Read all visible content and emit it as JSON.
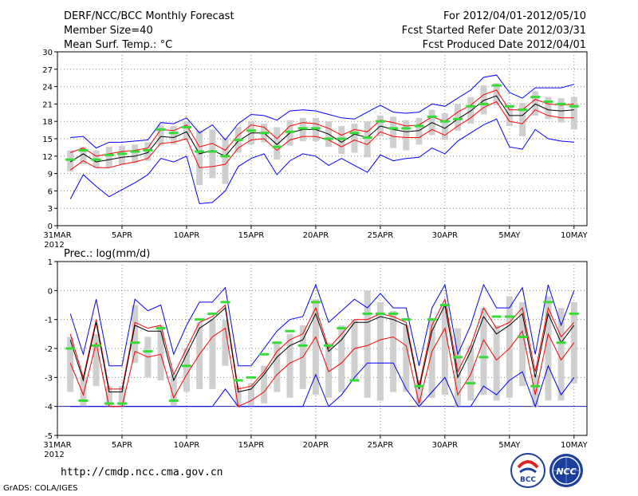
{
  "header": {
    "title": "DERF/NCC/BCC Monthly Forecast",
    "member_size": "Member Size=40",
    "variable": "Mean Surf. Temp.: °C",
    "period": "For 2012/04/01-2012/05/10",
    "started": "Fcst Started Refer Date 2012/03/31",
    "produced": "Fcst Produced Date 2012/04/01"
  },
  "footer": {
    "url": "http://cmdp.ncc.cma.gov.cn",
    "credit": "GrADS: COLA/IGES",
    "logo_bcc": "BCC",
    "logo_ncc": "NCC"
  },
  "colors": {
    "box": "#cfcfcf",
    "max_min": "#0000ff",
    "quartile": "#ff0000",
    "median": "#000000",
    "observation": "#33dd33",
    "grid": "#888888"
  },
  "chart_data": [
    {
      "type": "box",
      "title": "Mean Surf. Temp.: °C",
      "x_tick_labels": [
        "31MAR",
        "5APR",
        "10APR",
        "15APR",
        "20APR",
        "25APR",
        "30APR",
        "5MAY",
        "10MAY"
      ],
      "x_tick_days": [
        0,
        5,
        10,
        15,
        20,
        25,
        30,
        35,
        40
      ],
      "x_year_label": "2012",
      "ylim": [
        0,
        30
      ],
      "y_ticks": [
        0,
        3,
        6,
        9,
        12,
        15,
        18,
        21,
        24,
        27,
        30
      ],
      "days": [
        1,
        2,
        3,
        4,
        5,
        6,
        7,
        8,
        9,
        10,
        11,
        12,
        13,
        14,
        15,
        16,
        17,
        18,
        19,
        20,
        21,
        22,
        23,
        24,
        25,
        26,
        27,
        28,
        29,
        30,
        31,
        32,
        33,
        34,
        35,
        36,
        37,
        38,
        39,
        40
      ],
      "series": [
        {
          "name": "max",
          "values": [
            15.2,
            15.4,
            13.4,
            14.4,
            14.4,
            14.6,
            14.8,
            17.8,
            17.6,
            18.6,
            16.0,
            17.4,
            14.8,
            17.6,
            19.2,
            19.0,
            18.2,
            19.8,
            20.0,
            19.8,
            19.2,
            18.6,
            18.4,
            19.6,
            20.8,
            19.6,
            19.4,
            19.6,
            21.0,
            20.6,
            22.0,
            23.4,
            25.6,
            26.0,
            23.0,
            22.0,
            23.8,
            23.8,
            23.8,
            24.4
          ]
        },
        {
          "name": "q3",
          "values": [
            12.6,
            13.4,
            12.0,
            12.4,
            12.8,
            13.0,
            13.4,
            16.6,
            16.4,
            17.4,
            13.6,
            14.2,
            13.0,
            15.6,
            17.4,
            17.0,
            15.0,
            17.2,
            17.8,
            17.6,
            16.8,
            15.6,
            16.6,
            16.2,
            18.2,
            17.8,
            17.2,
            17.4,
            18.8,
            18.0,
            19.6,
            20.8,
            22.6,
            23.4,
            20.0,
            20.0,
            21.8,
            21.0,
            20.8,
            21.0
          ]
        },
        {
          "name": "median",
          "values": [
            11.0,
            12.4,
            11.0,
            11.4,
            11.8,
            12.0,
            12.6,
            15.4,
            15.2,
            16.2,
            12.4,
            13.0,
            12.0,
            14.6,
            16.0,
            16.0,
            14.0,
            16.0,
            16.6,
            16.6,
            15.8,
            14.4,
            15.8,
            15.2,
            17.2,
            16.6,
            16.2,
            16.4,
            17.8,
            16.8,
            18.4,
            19.8,
            21.6,
            22.4,
            19.0,
            19.0,
            21.0,
            20.0,
            19.8,
            20.0
          ]
        },
        {
          "name": "q1",
          "values": [
            9.6,
            11.2,
            10.0,
            10.0,
            10.6,
            11.0,
            11.6,
            14.2,
            14.4,
            15.0,
            10.0,
            10.2,
            10.6,
            13.4,
            14.8,
            15.0,
            13.0,
            14.8,
            15.4,
            15.4,
            14.8,
            13.6,
            14.8,
            14.0,
            16.2,
            15.4,
            15.2,
            15.2,
            16.6,
            15.6,
            17.2,
            18.6,
            20.4,
            21.4,
            18.0,
            17.6,
            20.0,
            19.0,
            18.6,
            18.6
          ]
        },
        {
          "name": "min",
          "values": [
            4.6,
            8.8,
            6.8,
            5.0,
            6.2,
            7.4,
            8.8,
            11.6,
            11.0,
            12.0,
            3.8,
            4.0,
            6.0,
            10.2,
            11.6,
            12.4,
            8.8,
            11.2,
            12.4,
            12.0,
            10.4,
            11.6,
            10.4,
            9.2,
            12.2,
            11.2,
            11.6,
            11.8,
            13.4,
            12.4,
            14.6,
            16.0,
            17.4,
            18.4,
            13.6,
            13.2,
            16.6,
            15.0,
            14.6,
            14.4
          ]
        },
        {
          "name": "observed",
          "values": [
            11.4,
            13.0,
            11.4,
            12.2,
            12.4,
            12.8,
            13.0,
            16.6,
            16.0,
            17.0,
            12.8,
            12.8,
            12.0,
            14.8,
            16.4,
            16.0,
            13.6,
            16.2,
            16.8,
            16.8,
            15.0,
            15.0,
            16.0,
            15.2,
            18.0,
            16.8,
            16.8,
            17.2,
            18.8,
            18.0,
            18.4,
            20.6,
            21.0,
            24.2,
            20.6,
            20.0,
            22.2,
            21.4,
            21.0,
            20.6
          ]
        },
        {
          "name": "box_high",
          "values": [
            13.0,
            13.6,
            13.0,
            13.6,
            13.8,
            14.0,
            14.4,
            17.4,
            17.2,
            18.0,
            16.4,
            16.6,
            15.2,
            17.0,
            18.0,
            17.6,
            17.0,
            18.2,
            18.6,
            18.6,
            18.0,
            17.2,
            17.6,
            18.0,
            19.0,
            18.8,
            18.2,
            18.6,
            20.0,
            19.4,
            21.0,
            22.2,
            24.2,
            24.6,
            20.8,
            21.2,
            23.2,
            22.2,
            22.0,
            22.2
          ]
        },
        {
          "name": "box_low",
          "values": [
            9.4,
            10.6,
            10.0,
            10.0,
            10.6,
            10.8,
            11.2,
            13.8,
            14.0,
            14.8,
            7.0,
            8.2,
            7.2,
            12.6,
            14.0,
            14.4,
            11.4,
            13.8,
            14.6,
            14.6,
            13.6,
            12.4,
            12.6,
            11.8,
            15.4,
            13.4,
            13.0,
            14.0,
            15.6,
            14.8,
            16.4,
            17.6,
            19.2,
            20.8,
            17.2,
            15.4,
            19.0,
            18.4,
            17.8,
            16.6
          ]
        }
      ]
    },
    {
      "type": "box",
      "title": "Prec.: log(mm/d)",
      "x_tick_labels": [
        "31MAR",
        "5APR",
        "10APR",
        "15APR",
        "20APR",
        "25APR",
        "30APR",
        "5MAY",
        "10MAY"
      ],
      "x_tick_days": [
        0,
        5,
        10,
        15,
        20,
        25,
        30,
        35,
        40
      ],
      "x_year_label": "2012",
      "ylim": [
        -5,
        1
      ],
      "y_ticks": [
        -5,
        -4,
        -3,
        -2,
        -1,
        0,
        1
      ],
      "floor": -4,
      "days": [
        1,
        2,
        3,
        4,
        5,
        6,
        7,
        8,
        9,
        10,
        11,
        12,
        13,
        14,
        15,
        16,
        17,
        18,
        19,
        20,
        21,
        22,
        23,
        24,
        25,
        26,
        27,
        28,
        29,
        30,
        31,
        32,
        33,
        34,
        35,
        36,
        37,
        38,
        39,
        40
      ],
      "series": [
        {
          "name": "max",
          "values": [
            -0.8,
            -2.2,
            -0.3,
            -2.6,
            -2.6,
            -0.3,
            -0.7,
            -0.5,
            -2.2,
            -1.2,
            -0.4,
            -0.4,
            0.1,
            -2.6,
            -2.6,
            -2.0,
            -1.4,
            -1.0,
            -0.9,
            0.2,
            -1.1,
            -0.7,
            -0.3,
            -0.6,
            -0.1,
            -0.6,
            -0.6,
            -2.6,
            -0.6,
            0.2,
            -2.2,
            -1.2,
            0.2,
            -0.6,
            -0.6,
            0.1,
            -2.2,
            0.2,
            -1.2,
            0.0
          ]
        },
        {
          "name": "q3",
          "values": [
            -1.5,
            -3.0,
            -1.0,
            -3.4,
            -3.4,
            -1.1,
            -1.3,
            -1.2,
            -2.9,
            -2.0,
            -1.1,
            -0.9,
            -0.5,
            -3.4,
            -3.3,
            -2.8,
            -2.1,
            -1.7,
            -1.5,
            -0.6,
            -2.0,
            -1.5,
            -1.0,
            -1.0,
            -0.8,
            -0.9,
            -1.1,
            -3.3,
            -1.2,
            -0.3,
            -2.8,
            -1.9,
            -0.6,
            -1.3,
            -1.1,
            -0.6,
            -2.8,
            -0.6,
            -1.6,
            -1.1
          ]
        },
        {
          "name": "median",
          "values": [
            -1.7,
            -3.1,
            -1.1,
            -3.5,
            -3.5,
            -1.2,
            -1.4,
            -1.4,
            -3.1,
            -2.2,
            -1.3,
            -1.0,
            -0.6,
            -3.5,
            -3.4,
            -2.9,
            -2.3,
            -1.9,
            -1.7,
            -0.8,
            -2.1,
            -1.7,
            -1.1,
            -1.1,
            -0.9,
            -1.0,
            -1.2,
            -3.4,
            -1.4,
            -0.5,
            -3.0,
            -2.1,
            -0.9,
            -1.5,
            -1.2,
            -0.8,
            -3.0,
            -0.8,
            -1.8,
            -1.2
          ]
        },
        {
          "name": "q1",
          "values": [
            -2.5,
            -3.6,
            -1.8,
            -4.0,
            -4.0,
            -2.1,
            -2.3,
            -2.2,
            -3.7,
            -2.9,
            -2.2,
            -1.6,
            -1.3,
            -4.0,
            -3.8,
            -3.5,
            -2.9,
            -2.5,
            -2.3,
            -1.6,
            -2.8,
            -2.5,
            -2.0,
            -1.9,
            -1.7,
            -1.6,
            -1.9,
            -3.9,
            -2.1,
            -1.3,
            -3.6,
            -2.9,
            -1.7,
            -2.4,
            -2.0,
            -1.4,
            -3.6,
            -1.5,
            -2.4,
            -1.8
          ]
        },
        {
          "name": "min",
          "values": [
            -4.0,
            -4.0,
            -4.0,
            -4.0,
            -4.0,
            -4.0,
            -4.0,
            -4.0,
            -4.0,
            -4.0,
            -4.0,
            -4.0,
            -3.4,
            -4.0,
            -4.0,
            -4.0,
            -4.0,
            -4.0,
            -4.0,
            -2.9,
            -4.0,
            -3.6,
            -3.0,
            -2.5,
            -2.5,
            -2.5,
            -3.4,
            -4.0,
            -3.5,
            -3.0,
            -4.0,
            -4.0,
            -3.3,
            -3.6,
            -3.1,
            -2.8,
            -4.0,
            -2.6,
            -3.6,
            -3.0
          ]
        },
        {
          "name": "observed",
          "values": [
            -2.0,
            -3.8,
            -1.9,
            -3.9,
            -3.9,
            -1.8,
            -2.1,
            -1.3,
            -3.8,
            -2.6,
            -1.0,
            -0.8,
            -0.4,
            -3.1,
            -3.0,
            -2.2,
            -1.8,
            -1.4,
            -1.9,
            -0.4,
            -1.9,
            -1.3,
            -3.1,
            -0.8,
            -0.8,
            -0.8,
            -1.0,
            -3.3,
            -1.0,
            -0.5,
            -2.3,
            -3.2,
            -2.3,
            -0.9,
            -0.9,
            -1.6,
            -3.3,
            -0.4,
            -1.8,
            -0.8
          ]
        },
        {
          "name": "box_high",
          "values": [
            -1.6,
            -3.0,
            -1.5,
            -3.3,
            -3.3,
            -0.5,
            -1.6,
            -1.2,
            -2.9,
            -2.0,
            -1.1,
            -1.0,
            -1.0,
            -3.3,
            -3.2,
            -2.6,
            -1.8,
            -1.5,
            -1.2,
            -0.3,
            -1.8,
            -1.2,
            -1.0,
            0.0,
            -0.4,
            -0.7,
            -1.2,
            -3.1,
            -1.0,
            -0.5,
            -1.3,
            -1.9,
            -0.6,
            -1.2,
            -0.2,
            -0.4,
            -2.9,
            -0.2,
            -0.6,
            -0.4
          ]
        },
        {
          "name": "box_low",
          "values": [
            -3.5,
            -4.0,
            -3.3,
            -4.0,
            -4.0,
            -2.5,
            -3.0,
            -3.1,
            -4.0,
            -3.5,
            -3.4,
            -3.4,
            -2.6,
            -4.0,
            -4.0,
            -3.9,
            -3.5,
            -3.7,
            -3.4,
            -3.6,
            -3.7,
            -3.5,
            -3.1,
            -3.7,
            -3.8,
            -3.5,
            -3.5,
            -4.0,
            -3.7,
            -3.6,
            -4.0,
            -3.8,
            -3.6,
            -3.8,
            -3.7,
            -3.3,
            -4.0,
            -3.8,
            -3.8,
            -3.2
          ]
        }
      ]
    }
  ]
}
